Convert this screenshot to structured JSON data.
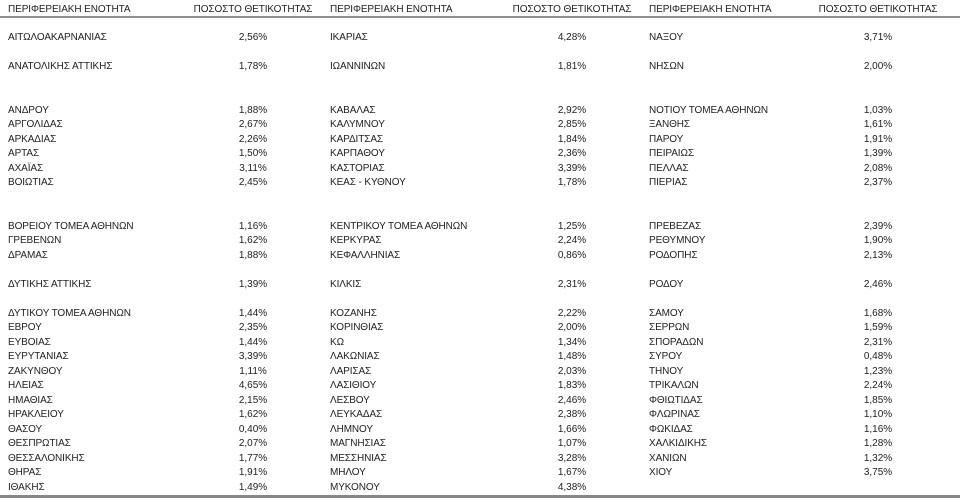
{
  "colors": {
    "background": "#ffffff",
    "text": "#212121",
    "rule": "#8f8f8f"
  },
  "table": {
    "groups": [
      {
        "name_header": "ΠΕΡΙΦΕΡΕΙΑΚΗ ΕΝΟΤΗΤΑ",
        "value_header": "ΠΟΣΟΣΤΟ ΘΕΤΙΚΟΤΗΤΑΣ",
        "rows": [
          {
            "name": "ΑΙΤΩΛΟΑΚΑΡΝΑΝΙΑΣ",
            "value": "2,56%"
          },
          null,
          {
            "name": "ΑΝΑΤΟΛΙΚΗΣ ΑΤΤΙΚΗΣ",
            "value": "1,78%"
          },
          null,
          null,
          {
            "name": "ΑΝΔΡΟΥ",
            "value": "1,88%"
          },
          {
            "name": "ΑΡΓΟΛΙΔΑΣ",
            "value": "2,67%"
          },
          {
            "name": "ΑΡΚΑΔΙΑΣ",
            "value": "2,26%"
          },
          {
            "name": "ΑΡΤΑΣ",
            "value": "1,50%"
          },
          {
            "name": "ΑΧΑΪΑΣ",
            "value": "3,11%"
          },
          {
            "name": "ΒΟΙΩΤΙΑΣ",
            "value": "2,45%"
          },
          null,
          null,
          {
            "name": "ΒΟΡΕΙΟΥ ΤΟΜΕΑ ΑΘΗΝΩΝ",
            "value": "1,16%"
          },
          {
            "name": "ΓΡΕΒΕΝΩΝ",
            "value": "1,62%"
          },
          {
            "name": "ΔΡΑΜΑΣ",
            "value": "1,88%"
          },
          null,
          {
            "name": "ΔΥΤΙΚΗΣ ΑΤΤΙΚΗΣ",
            "value": "1,39%"
          },
          null,
          {
            "name": "ΔΥΤΙΚΟΥ ΤΟΜΕΑ ΑΘΗΝΩΝ",
            "value": "1,44%"
          },
          {
            "name": "ΕΒΡΟΥ",
            "value": "2,35%"
          },
          {
            "name": "ΕΥΒΟΙΑΣ",
            "value": "1,44%"
          },
          {
            "name": "ΕΥΡΥΤΑΝΙΑΣ",
            "value": "3,39%"
          },
          {
            "name": "ΖΑΚΥΝΘΟΥ",
            "value": "1,11%"
          },
          {
            "name": "ΗΛΕΙΑΣ",
            "value": "4,65%"
          },
          {
            "name": "ΗΜΑΘΙΑΣ",
            "value": "2,15%"
          },
          {
            "name": "ΗΡΑΚΛΕΙΟΥ",
            "value": "1,62%"
          },
          {
            "name": "ΘΑΣΟΥ",
            "value": "0,40%"
          },
          {
            "name": "ΘΕΣΠΡΩΤΙΑΣ",
            "value": "2,07%"
          },
          {
            "name": "ΘΕΣΣΑΛΟΝΙΚΗΣ",
            "value": "1,77%"
          },
          {
            "name": "ΘΗΡΑΣ",
            "value": "1,91%"
          },
          {
            "name": "ΙΘΑΚΗΣ",
            "value": "1,49%"
          }
        ]
      },
      {
        "name_header": "ΠΕΡΙΦΕΡΕΙΑΚΗ ΕΝΟΤΗΤΑ",
        "value_header": "ΠΟΣΟΣΤΟ ΘΕΤΙΚΟΤΗΤΑΣ",
        "rows": [
          {
            "name": "ΙΚΑΡΙΑΣ",
            "value": "4,28%"
          },
          null,
          {
            "name": "ΙΩΑΝΝΙΝΩΝ",
            "value": "1,81%"
          },
          null,
          null,
          {
            "name": "ΚΑΒΑΛΑΣ",
            "value": "2,92%"
          },
          {
            "name": "ΚΑΛΥΜΝΟΥ",
            "value": "2,85%"
          },
          {
            "name": "ΚΑΡΔΙΤΣΑΣ",
            "value": "1,84%"
          },
          {
            "name": "ΚΑΡΠΑΘΟΥ",
            "value": "2,36%"
          },
          {
            "name": "ΚΑΣΤΟΡΙΑΣ",
            "value": "3,39%"
          },
          {
            "name": "ΚΕΑΣ - ΚΥΘΝΟΥ",
            "value": "1,78%"
          },
          null,
          null,
          {
            "name": "ΚΕΝΤΡΙΚΟΥ ΤΟΜΕΑ ΑΘΗΝΩΝ",
            "value": "1,25%"
          },
          {
            "name": "ΚΕΡΚΥΡΑΣ",
            "value": "2,24%"
          },
          {
            "name": "ΚΕΦΑΛΛΗΝΙΑΣ",
            "value": "0,86%"
          },
          null,
          {
            "name": "ΚΙΛΚΙΣ",
            "value": "2,31%"
          },
          null,
          {
            "name": "ΚΟΖΑΝΗΣ",
            "value": "2,22%"
          },
          {
            "name": "ΚΟΡΙΝΘΙΑΣ",
            "value": "2,00%"
          },
          {
            "name": "ΚΩ",
            "value": "1,34%"
          },
          {
            "name": "ΛΑΚΩΝΙΑΣ",
            "value": "1,48%"
          },
          {
            "name": "ΛΑΡΙΣΑΣ",
            "value": "2,03%"
          },
          {
            "name": "ΛΑΣΙΘΙΟΥ",
            "value": "1,83%"
          },
          {
            "name": "ΛΕΣΒΟΥ",
            "value": "2,46%"
          },
          {
            "name": "ΛΕΥΚΑΔΑΣ",
            "value": "2,38%"
          },
          {
            "name": "ΛΗΜΝΟΥ",
            "value": "1,66%"
          },
          {
            "name": "ΜΑΓΝΗΣΙΑΣ",
            "value": "1,07%"
          },
          {
            "name": "ΜΕΣΣΗΝΙΑΣ",
            "value": "3,28%"
          },
          {
            "name": "ΜΗΛΟΥ",
            "value": "1,67%"
          },
          {
            "name": "ΜΥΚΟΝΟΥ",
            "value": "4,38%"
          }
        ]
      },
      {
        "name_header": "ΠΕΡΙΦΕΡΕΙΑΚΗ ΕΝΟΤΗΤΑ",
        "value_header": "ΠΟΣΟΣΤΟ ΘΕΤΙΚΟΤΗΤΑΣ",
        "rows": [
          {
            "name": "ΝΑΞΟΥ",
            "value": "3,71%"
          },
          null,
          {
            "name": "ΝΗΣΩΝ",
            "value": "2,00%"
          },
          null,
          null,
          {
            "name": "ΝΟΤΙΟΥ ΤΟΜΕΑ ΑΘΗΝΩΝ",
            "value": "1,03%"
          },
          {
            "name": "ΞΑΝΘΗΣ",
            "value": "1,61%"
          },
          {
            "name": "ΠΑΡΟΥ",
            "value": "1,91%"
          },
          {
            "name": "ΠΕΙΡΑΙΩΣ",
            "value": "1,39%"
          },
          {
            "name": "ΠΕΛΛΑΣ",
            "value": "2,08%"
          },
          {
            "name": "ΠΙΕΡΙΑΣ",
            "value": "2,37%"
          },
          null,
          null,
          {
            "name": "ΠΡΕΒΕΖΑΣ",
            "value": "2,39%"
          },
          {
            "name": "ΡΕΘΥΜΝΟΥ",
            "value": "1,90%"
          },
          {
            "name": "ΡΟΔΟΠΗΣ",
            "value": "2,13%"
          },
          null,
          {
            "name": "ΡΟΔΟΥ",
            "value": "2,46%"
          },
          null,
          {
            "name": "ΣΑΜΟΥ",
            "value": "1,68%"
          },
          {
            "name": "ΣΕΡΡΩΝ",
            "value": "1,59%"
          },
          {
            "name": "ΣΠΟΡΑΔΩΝ",
            "value": "2,31%"
          },
          {
            "name": "ΣΥΡΟΥ",
            "value": "0,48%"
          },
          {
            "name": "ΤΗΝΟΥ",
            "value": "1,23%"
          },
          {
            "name": "ΤΡΙΚΑΛΩΝ",
            "value": "2,24%"
          },
          {
            "name": "ΦΘΙΩΤΙΔΑΣ",
            "value": "1,85%"
          },
          {
            "name": "ΦΛΩΡΙΝΑΣ",
            "value": "1,10%"
          },
          {
            "name": "ΦΩΚΙΔΑΣ",
            "value": "1,16%"
          },
          {
            "name": "ΧΑΛΚΙΔΙΚΗΣ",
            "value": "1,28%"
          },
          {
            "name": "ΧΑΝΙΩΝ",
            "value": "1,32%"
          },
          {
            "name": "ΧΙΟΥ",
            "value": "3,75%"
          },
          null
        ]
      }
    ]
  }
}
